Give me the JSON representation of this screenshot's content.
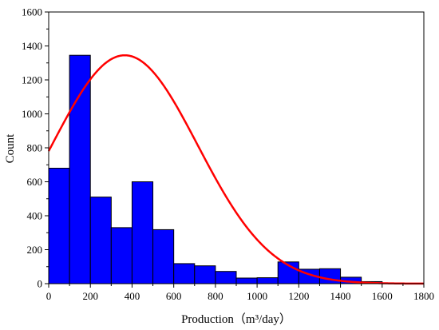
{
  "chart_data": {
    "type": "bar",
    "subtype": "histogram_with_normal_fit",
    "xlabel": "Production（m³/day）",
    "ylabel": "Count",
    "xlim": [
      0,
      1800
    ],
    "ylim": [
      0,
      1600
    ],
    "x_ticks": [
      0,
      200,
      400,
      600,
      800,
      1000,
      1200,
      1400,
      1600,
      1800
    ],
    "y_ticks": [
      0,
      200,
      400,
      600,
      800,
      1000,
      1200,
      1400,
      1600
    ],
    "bin_width": 100,
    "bins": [
      {
        "x0": 0,
        "x1": 100,
        "count": 680
      },
      {
        "x0": 100,
        "x1": 200,
        "count": 1345
      },
      {
        "x0": 200,
        "x1": 300,
        "count": 510
      },
      {
        "x0": 300,
        "x1": 400,
        "count": 330
      },
      {
        "x0": 400,
        "x1": 500,
        "count": 600
      },
      {
        "x0": 500,
        "x1": 600,
        "count": 318
      },
      {
        "x0": 600,
        "x1": 700,
        "count": 118
      },
      {
        "x0": 700,
        "x1": 800,
        "count": 105
      },
      {
        "x0": 800,
        "x1": 900,
        "count": 72
      },
      {
        "x0": 900,
        "x1": 1000,
        "count": 33
      },
      {
        "x0": 1000,
        "x1": 1100,
        "count": 35
      },
      {
        "x0": 1100,
        "x1": 1200,
        "count": 128
      },
      {
        "x0": 1200,
        "x1": 1300,
        "count": 85
      },
      {
        "x0": 1300,
        "x1": 1400,
        "count": 88
      },
      {
        "x0": 1400,
        "x1": 1500,
        "count": 38
      },
      {
        "x0": 1500,
        "x1": 1600,
        "count": 12
      },
      {
        "x0": 1600,
        "x1": 1700,
        "count": 3
      },
      {
        "x0": 1700,
        "x1": 1800,
        "count": 1
      }
    ],
    "fit_curve": {
      "type": "normal",
      "peak_x": 365,
      "peak_y": 1345,
      "sigma": 350
    },
    "grid": false,
    "legend": "none"
  },
  "colors": {
    "bar_fill": "#0000ff",
    "bar_stroke": "#000000",
    "curve": "#ff0000",
    "axis": "#000000"
  }
}
